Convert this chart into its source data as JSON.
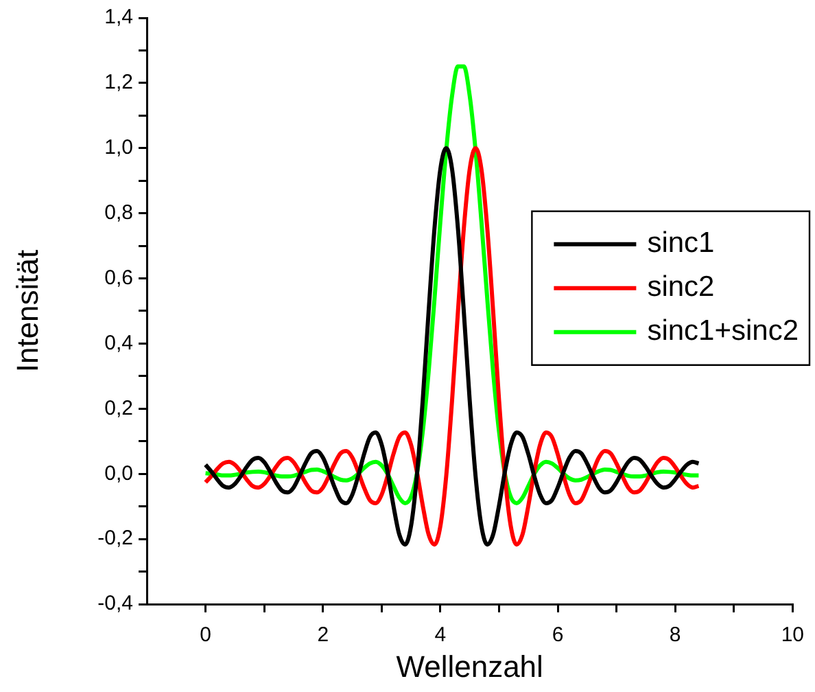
{
  "chart_data": {
    "type": "line",
    "xlabel": "Wellenzahl",
    "ylabel": "Intensität",
    "legend": "right",
    "marker": "none",
    "grid": false,
    "xlim": [
      -1,
      10
    ],
    "ylim": [
      -0.4,
      1.4
    ],
    "xticks": [
      0,
      {
        "value": 1,
        "label": null
      },
      2,
      {
        "value": 3,
        "label": null
      },
      4,
      {
        "value": 5,
        "label": null
      },
      6,
      {
        "value": 7,
        "label": null
      },
      8,
      {
        "value": 9,
        "label": null
      },
      10
    ],
    "yticks": [
      {
        "value": -0.4,
        "label": "-0,4"
      },
      {
        "value": -0.3,
        "label": null
      },
      {
        "value": -0.2,
        "label": "-0,2"
      },
      {
        "value": -0.1,
        "label": null
      },
      {
        "value": 0,
        "label": "0,0"
      },
      {
        "value": 0.1,
        "label": null
      },
      {
        "value": 0.2,
        "label": "0,2"
      },
      {
        "value": 0.3,
        "label": null
      },
      {
        "value": 0.4,
        "label": "0,4"
      },
      {
        "value": 0.5,
        "label": null
      },
      {
        "value": 0.6,
        "label": "0,6"
      },
      {
        "value": 0.7,
        "label": null
      },
      {
        "value": 0.8,
        "label": "0,8"
      },
      {
        "value": 0.9,
        "label": null
      },
      {
        "value": 1.0,
        "label": "1,0"
      },
      {
        "value": 1.1,
        "label": null
      },
      {
        "value": 1.2,
        "label": "1,2"
      },
      {
        "value": 1.3,
        "label": null
      },
      {
        "value": 1.4,
        "label": "1,4"
      }
    ],
    "x": [
      0,
      0.1,
      0.2,
      0.3,
      0.4,
      0.5,
      0.6,
      0.7,
      0.8,
      0.9,
      1,
      1.1,
      1.2,
      1.3,
      1.4,
      1.5,
      1.6,
      1.7,
      1.8,
      1.9,
      2,
      2.1,
      2.2,
      2.3,
      2.4,
      2.5,
      2.6,
      2.7,
      2.8,
      2.9,
      3,
      3.1,
      3.2,
      3.3,
      3.4,
      3.5,
      3.6,
      3.7,
      3.8,
      3.9,
      4,
      4.1,
      4.2,
      4.3,
      4.4,
      4.5,
      4.6,
      4.7,
      4.8,
      4.9,
      5,
      5.1,
      5.2,
      5.3,
      5.4,
      5.5,
      5.6,
      5.7,
      5.8,
      5.9,
      6,
      6.1,
      6.2,
      6.3,
      6.4,
      6.5,
      6.6,
      6.7,
      6.8,
      6.9,
      7,
      7.1,
      7.2,
      7.3,
      7.4,
      7.5,
      7.6,
      7.7,
      7.8,
      7.9,
      8,
      8.1,
      8.2,
      8.3,
      8.4
    ],
    "series": [
      {
        "name": "sinc1",
        "color": "#000000",
        "values": [
          0.028,
          0.007,
          -0.017,
          -0.037,
          -0.042,
          -0.031,
          -0.007,
          0.021,
          0.043,
          0.049,
          0.036,
          0.007,
          -0.026,
          -0.051,
          -0.057,
          -0.042,
          -0.007,
          0.032,
          0.063,
          0.07,
          0.05,
          0.007,
          -0.042,
          -0.081,
          -0.09,
          -0.064,
          -0.007,
          0.06,
          0.113,
          0.127,
          0.09,
          0.007,
          -0.097,
          -0.186,
          -0.217,
          -0.161,
          -0.007,
          0.226,
          0.498,
          0.753,
          0.935,
          1,
          0.935,
          0.753,
          0.498,
          0.226,
          -0.007,
          -0.161,
          -0.217,
          -0.186,
          -0.097,
          0.007,
          0.09,
          0.127,
          0.113,
          0.06,
          -0.007,
          -0.064,
          -0.09,
          -0.081,
          -0.042,
          0.007,
          0.05,
          0.07,
          0.063,
          0.032,
          -0.007,
          -0.042,
          -0.057,
          -0.051,
          -0.026,
          0.007,
          0.036,
          0.049,
          0.043,
          0.021,
          -0.007,
          -0.031,
          -0.042,
          -0.037,
          -0.017,
          0.007,
          0.028,
          0.037,
          0.032
        ]
      },
      {
        "name": "sinc2",
        "color": "#ff0000",
        "values": [
          -0.026,
          -0.007,
          0.015,
          0.032,
          0.037,
          0.028,
          0.007,
          -0.017,
          -0.037,
          -0.042,
          -0.031,
          -0.007,
          0.021,
          0.043,
          0.049,
          0.036,
          0.007,
          -0.026,
          -0.051,
          -0.057,
          -0.042,
          -0.007,
          0.032,
          0.063,
          0.07,
          0.05,
          0.007,
          -0.042,
          -0.081,
          -0.09,
          -0.064,
          -0.007,
          0.06,
          0.113,
          0.127,
          0.09,
          0.007,
          -0.097,
          -0.186,
          -0.217,
          -0.161,
          -0.007,
          0.226,
          0.498,
          0.753,
          0.935,
          1,
          0.935,
          0.753,
          0.498,
          0.226,
          -0.007,
          -0.161,
          -0.217,
          -0.186,
          -0.097,
          0.007,
          0.09,
          0.127,
          0.113,
          0.06,
          -0.007,
          -0.064,
          -0.09,
          -0.081,
          -0.042,
          0.007,
          0.05,
          0.07,
          0.063,
          0.032,
          -0.007,
          -0.042,
          -0.057,
          -0.051,
          -0.026,
          0.007,
          0.036,
          0.049,
          0.043,
          0.021,
          -0.007,
          -0.031,
          -0.042,
          -0.037
        ]
      },
      {
        "name": "sinc1+sinc2",
        "color": "#00ff00",
        "values": [
          0.002,
          0,
          -0.002,
          -0.005,
          -0.005,
          -0.003,
          0,
          0.004,
          0.006,
          0.007,
          0.005,
          0,
          -0.005,
          -0.008,
          -0.008,
          -0.006,
          0,
          0.006,
          0.012,
          0.013,
          0.008,
          0,
          -0.01,
          -0.018,
          -0.02,
          -0.014,
          0,
          0.018,
          0.032,
          0.037,
          0.026,
          0,
          -0.037,
          -0.073,
          -0.09,
          -0.071,
          0,
          0.129,
          0.312,
          0.536,
          0.774,
          0.993,
          1.161,
          1.251,
          1.251,
          1.161,
          0.993,
          0.774,
          0.536,
          0.312,
          0.129,
          0,
          -0.071,
          -0.09,
          -0.073,
          -0.037,
          0,
          0.026,
          0.037,
          0.032,
          0.018,
          0,
          -0.014,
          -0.02,
          -0.018,
          -0.01,
          0,
          0.008,
          0.013,
          0.012,
          0.006,
          0,
          -0.006,
          -0.008,
          -0.008,
          -0.005,
          0,
          0.005,
          0.007,
          0.006,
          0.004,
          0,
          -0.003,
          -0.005,
          -0.005
        ]
      }
    ]
  }
}
